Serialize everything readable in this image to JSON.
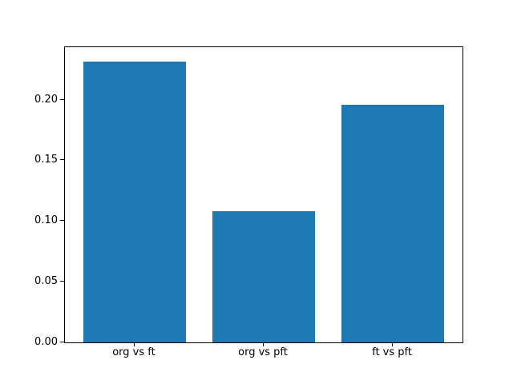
{
  "chart_data": {
    "type": "bar",
    "title": "",
    "xlabel": "",
    "ylabel": "",
    "categories": [
      "org vs ft",
      "org vs pft",
      "ft vs pft"
    ],
    "values": [
      0.232,
      0.108,
      0.196
    ],
    "yticks": [
      0.0,
      0.05,
      0.1,
      0.15,
      0.2
    ],
    "ytick_labels": [
      "0.00",
      "0.05",
      "0.10",
      "0.15",
      "0.20"
    ],
    "ylim": [
      0,
      0.2436
    ],
    "bar_color": "#1f77b4",
    "bar_width_fraction": 0.8,
    "grid": false,
    "legend": null,
    "background_color": "#ffffff",
    "spine_color": "#000000"
  }
}
